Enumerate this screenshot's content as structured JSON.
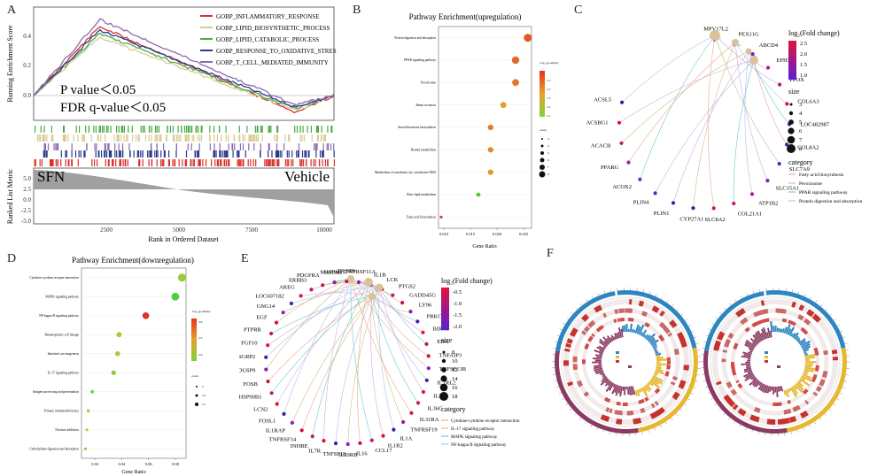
{
  "panel_labels": {
    "a": "A",
    "b": "B",
    "c": "C",
    "d": "D",
    "e": "E",
    "f": "F"
  },
  "colors": {
    "red": "#d9302c",
    "tan": "#d8cc95",
    "green": "#4aab47",
    "navy": "#2b3a8c",
    "purple": "#8c6bb1",
    "gold": "#e0a030",
    "blue": "#2e86c1",
    "maroon": "#8b3a62"
  },
  "panel_a": {
    "legend": [
      "GOBP_INFLAMMATORY_RESPONSE",
      "GOBP_LIPID_BIOSYNTHETIC_PROCESS",
      "GOBP_LIPID_CATABOLIC_PROCESS",
      "GOBP_RESPONSE_TO_OXIDATIVE_STRES",
      "GOBP_T_CELL_MEDIATED_IMMUNITY"
    ],
    "ylabel_top": "Running Enrichment Score",
    "ylabel_bottom": "Ranked List Metric",
    "xlabel": "Rank in Ordered Dataset",
    "pvalue": "P value＜0.05",
    "fdr": "FDR q-value＜0.05",
    "left_group": "SFN",
    "right_group": "Vehicle",
    "yticks_top": [
      "0.4",
      "0.2",
      "0.0"
    ],
    "yticks_bottom": [
      "5.0",
      "2.5",
      "0.0",
      "-2.5",
      "-5.0"
    ],
    "xticks": [
      "2500",
      "5000",
      "7500",
      "10000"
    ]
  },
  "chart_data": [
    {
      "type": "scatter",
      "title": "Pathway Enrichment(upregulation)",
      "xlabel": "Gene Ratio",
      "categories": [
        "Protein digestion and absorption",
        "PPAR signaling pathway",
        "Peroxisome",
        "Renin secretion",
        "Steroid hormone biosynthesis",
        "Retinol metabolism",
        "Metabolism of xenobiotics by cytochrome P450",
        "Ether lipid metabolism",
        "Fatty acid biosynthesis"
      ],
      "values": [
        0.0258,
        0.0235,
        0.0235,
        0.0212,
        0.0188,
        0.0188,
        0.0188,
        0.0165,
        0.0095
      ],
      "xticks": [
        "0.010",
        "0.015",
        "0.020",
        "0.025"
      ],
      "xlim": [
        0.009,
        0.0265
      ],
      "legend_title_color": "-log₁₀(p.adjust)",
      "color_ticks": [
        "1.5",
        "1.4",
        "1.3",
        "1.2",
        "1.1"
      ],
      "legend_title_size": "count",
      "size_ticks": [
        "3",
        "4",
        "5",
        "6",
        "7",
        "8"
      ]
    },
    {
      "type": "scatter",
      "title": "Pathway Enrichment(downregulation)",
      "xlabel": "Gene Ratio",
      "categories": [
        "Cytokine-cytokine receptor interaction",
        "MAPK signaling pathway",
        "NF-kappa B signaling pathway",
        "Hematopoietic cell lineage",
        "Intestinal carcinogenesis",
        "IL-17 signaling pathway",
        "Antigen processing and presentation",
        "Primary immunodeficiency",
        "Nicotine addiction",
        "Carbohydrate digestion and absorption"
      ],
      "values": [
        0.085,
        0.08,
        0.058,
        0.038,
        0.037,
        0.034,
        0.018,
        0.015,
        0.014,
        0.013
      ],
      "xticks": [
        "0.02",
        "0.04",
        "0.06",
        "0.08"
      ],
      "xlim": [
        0.01,
        0.088
      ],
      "legend_title_color": "-log₁₀(p.adjust)",
      "color_ticks": [
        "3.0",
        "2.5",
        "2.0"
      ],
      "legend_title_size": "count",
      "size_ticks": [
        "5",
        "10",
        "15"
      ]
    }
  ],
  "panel_c": {
    "genes": [
      "MPV17L2",
      "PEX11G",
      "ABCD4",
      "EPHX2",
      "PPOX",
      "COL6A3",
      "LOC482987",
      "COL8A2",
      "SLC7A9",
      "SLC15A1",
      "ATP1B2",
      "COL21A1",
      "SLC8A2",
      "CYP27A1",
      "PLIN1",
      "PLIN4",
      "ACOX2",
      "PPARG",
      "ACACB",
      "ACSBG1",
      "ACSL5"
    ],
    "legend_color_title": "log₂(Fold change)",
    "color_ticks": [
      "2.5",
      "2.0",
      "1.5",
      "1.0"
    ],
    "legend_size_title": "size",
    "size_ticks": [
      "3",
      "4",
      "5",
      "6",
      "7",
      "8"
    ],
    "category_title": "category",
    "categories": [
      "Fatty acid biosynthesis",
      "Peroxisome",
      "PPAR signaling pathway",
      "Protein digestion and absorption"
    ]
  },
  "panel_e": {
    "genes": [
      "HSPA8",
      "DUSP6",
      "TNFRSF11A",
      "IL1B",
      "LCK",
      "PTGS2",
      "GADD45G",
      "LY96",
      "PRKCB",
      "BIRC3",
      "EDA",
      "TNFAIP3",
      "TNFSF13B",
      "IL1RL2",
      "IL37",
      "IL36G",
      "IL31RA",
      "TNFRSF19",
      "IL1A",
      "IL1R2",
      "CCL17",
      "IL16",
      "IL20RB",
      "TNFSF18",
      "IL7R",
      "INHBE",
      "TNFRSF14",
      "IL1RAP",
      "FOSL1",
      "LCN2",
      "HSP90B1",
      "FOSB",
      "DUSP9",
      "RASGRP2",
      "FGF10",
      "PTPRR",
      "EGF",
      "GNG14",
      "LOC607182",
      "AREG",
      "ERBB3",
      "PDGFRA",
      "MAP3K15"
    ],
    "legend_color_title": "log₂(Fold change)",
    "color_ticks": [
      "-0.5",
      "-1.0",
      "-1.5",
      "-2.0"
    ],
    "legend_size_title": "size",
    "size_ticks": [
      "8",
      "10",
      "12",
      "14",
      "16",
      "18"
    ],
    "category_title": "category",
    "categories": [
      "Cytokine-cytokine receptor interaction",
      "IL-17 signaling pathway",
      "MAPK signaling pathway",
      "NF-kappa B signaling pathway"
    ]
  }
}
